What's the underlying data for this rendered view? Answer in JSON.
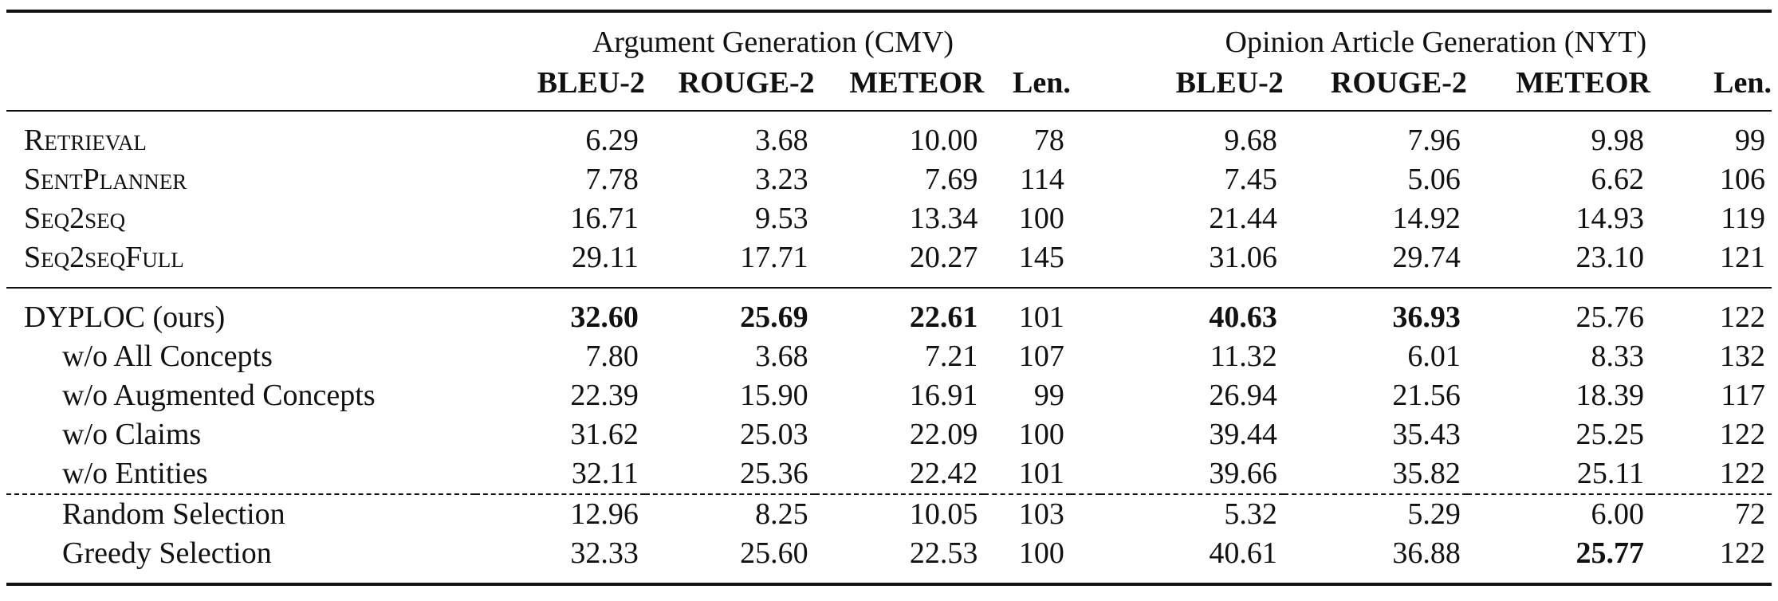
{
  "table": {
    "group_headers": [
      "Argument Generation (CMV)",
      "Opinion Article Generation (NYT)"
    ],
    "columns": [
      "BLEU-2",
      "ROUGE-2",
      "METEOR",
      "Len.",
      "BLEU-2",
      "ROUGE-2",
      "METEOR",
      "Len."
    ],
    "baseline_rows": [
      {
        "name": "Retrieval",
        "values": [
          "6.29",
          "3.68",
          "10.00",
          "78",
          "9.68",
          "7.96",
          "9.98",
          "99"
        ]
      },
      {
        "name": "SentPlanner",
        "values": [
          "7.78",
          "3.23",
          "7.69",
          "114",
          "7.45",
          "5.06",
          "6.62",
          "106"
        ]
      },
      {
        "name": "Seq2seq",
        "values": [
          "16.71",
          "9.53",
          "13.34",
          "100",
          "21.44",
          "14.92",
          "14.93",
          "119"
        ]
      },
      {
        "name": "Seq2seqFull",
        "values": [
          "29.11",
          "17.71",
          "20.27",
          "145",
          "31.06",
          "29.74",
          "23.10",
          "121"
        ]
      }
    ],
    "ours_rows": [
      {
        "name": "DYPLOC (ours)",
        "values": [
          "32.60",
          "25.69",
          "22.61",
          "101",
          "40.63",
          "36.93",
          "25.76",
          "122"
        ]
      },
      {
        "name": "w/o All Concepts",
        "values": [
          "7.80",
          "3.68",
          "7.21",
          "107",
          "11.32",
          "6.01",
          "8.33",
          "132"
        ]
      },
      {
        "name": "w/o Augmented Concepts",
        "values": [
          "22.39",
          "15.90",
          "16.91",
          "99",
          "26.94",
          "21.56",
          "18.39",
          "117"
        ]
      },
      {
        "name": "w/o Claims",
        "values": [
          "31.62",
          "25.03",
          "22.09",
          "100",
          "39.44",
          "35.43",
          "25.25",
          "122"
        ]
      },
      {
        "name": "w/o Entities",
        "values": [
          "32.11",
          "25.36",
          "22.42",
          "101",
          "39.66",
          "35.82",
          "25.11",
          "122"
        ]
      }
    ],
    "selection_rows": [
      {
        "name": "Random Selection",
        "values": [
          "12.96",
          "8.25",
          "10.05",
          "103",
          "5.32",
          "5.29",
          "6.00",
          "72"
        ]
      },
      {
        "name": "Greedy Selection",
        "values": [
          "32.33",
          "25.60",
          "22.53",
          "100",
          "40.61",
          "36.88",
          "25.77",
          "122"
        ]
      }
    ]
  }
}
